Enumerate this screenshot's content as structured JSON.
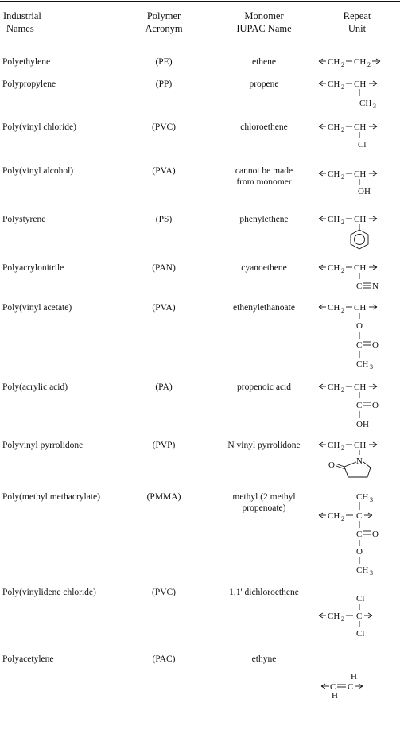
{
  "headers": {
    "col1": [
      "Industrial",
      "Names"
    ],
    "col2": [
      "Polymer",
      "Acronym"
    ],
    "col3": [
      "Monomer",
      "IUPAC Name"
    ],
    "col4": [
      "Repeat",
      "Unit"
    ]
  },
  "rows": [
    {
      "name": "Polyethylene",
      "acronym": "(PE)",
      "iupac": [
        "ethene"
      ]
    },
    {
      "name": "Polypropylene",
      "acronym": "(PP)",
      "iupac": [
        "propene"
      ]
    },
    {
      "name": "Poly(vinyl chloride)",
      "acronym": "(PVC)",
      "iupac": [
        "chloroethene"
      ]
    },
    {
      "name": "Poly(vinyl alcohol)",
      "acronym": "(PVA)",
      "iupac": [
        "cannot be made",
        "from monomer"
      ]
    },
    {
      "name": "Polystyrene",
      "acronym": "(PS)",
      "iupac": [
        "phenylethene"
      ]
    },
    {
      "name": "Polyacrylonitrile",
      "acronym": "(PAN)",
      "iupac": [
        "cyanoethene"
      ]
    },
    {
      "name": "Poly(vinyl acetate)",
      "acronym": "(PVA)",
      "iupac": [
        "ethenylethanoate"
      ]
    },
    {
      "name": "Poly(acrylic acid)",
      "acronym": "(PA)",
      "iupac": [
        "propenoic acid"
      ]
    },
    {
      "name": "Polyvinyl pyrrolidone",
      "acronym": "(PVP)",
      "iupac": [
        "N vinyl pyrrolidone"
      ]
    },
    {
      "name": "Poly(methyl methacrylate)",
      "acronym": "(PMMA)",
      "iupac": [
        "methyl (2 methyl",
        "propenoate)"
      ]
    },
    {
      "name": "Poly(vinylidene chloride)",
      "acronym": "(PVC)",
      "iupac": [
        "1,1' dichloroethene"
      ]
    },
    {
      "name": "Polyacetylene",
      "acronym": "(PAC)",
      "iupac": [
        "ethyne"
      ]
    }
  ],
  "formula": {
    "ch2": "CH",
    "ch": "CH",
    "ch3": "CH",
    "c": "C",
    "h": "H",
    "cl": "Cl",
    "oh": "OH",
    "o": "O",
    "n": "N",
    "sub2": "2",
    "sub3": "3"
  }
}
